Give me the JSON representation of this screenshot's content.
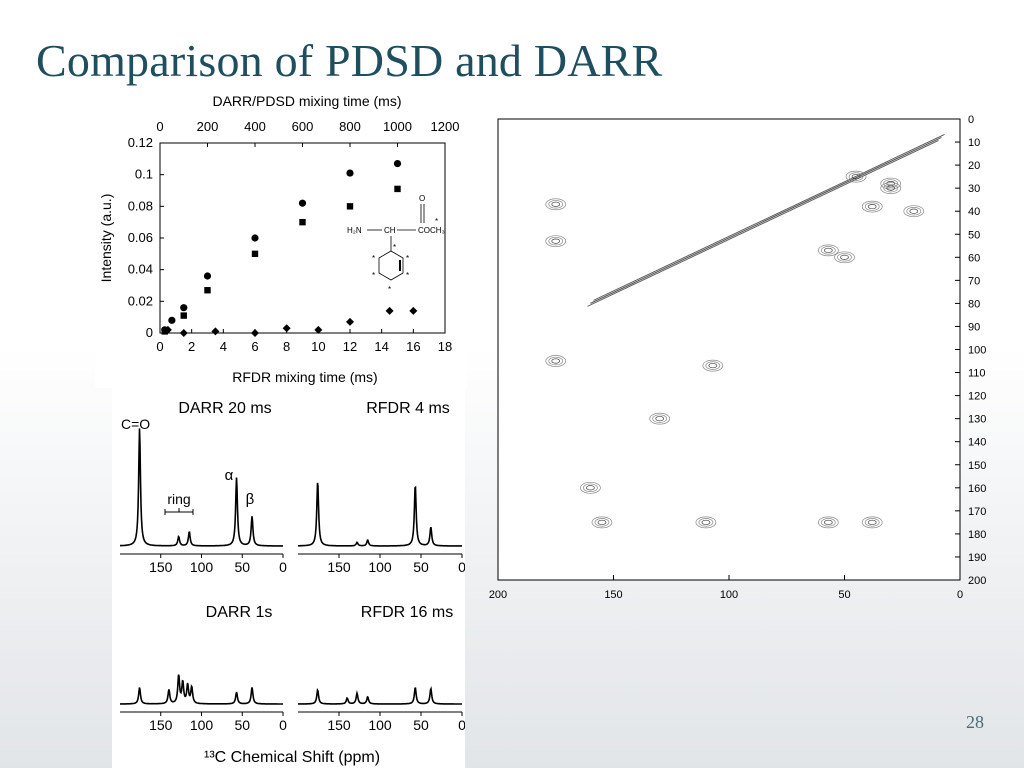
{
  "slide": {
    "title": "Comparison of PDSD and DARR",
    "page_number": "28"
  },
  "chart_data": [
    {
      "type": "scatter",
      "xlabel": "RFDR mixing time (ms)",
      "x2label": "DARR/PDSD mixing time (ms)",
      "ylabel": "Intensity (a.u.)",
      "xlim": [
        0,
        18
      ],
      "x2lim": [
        0,
        1200
      ],
      "ylim": [
        0,
        0.12
      ],
      "x_ticks": [
        0,
        2,
        4,
        6,
        8,
        10,
        12,
        14,
        16,
        18
      ],
      "x2_ticks": [
        0,
        200,
        400,
        600,
        800,
        1000,
        1200
      ],
      "y_ticks": [
        "0",
        "0.02",
        "0.04",
        "0.06",
        "0.08",
        "0.1",
        "0.12"
      ],
      "series": [
        {
          "marker": "circle",
          "axis": "top",
          "points": [
            [
              20,
              0.002
            ],
            [
              50,
              0.008
            ],
            [
              100,
              0.016
            ],
            [
              200,
              0.036
            ],
            [
              400,
              0.06
            ],
            [
              600,
              0.082
            ],
            [
              800,
              0.101
            ],
            [
              1000,
              0.107
            ]
          ]
        },
        {
          "marker": "square",
          "axis": "top",
          "points": [
            [
              20,
              0.001
            ],
            [
              100,
              0.011
            ],
            [
              200,
              0.027
            ],
            [
              400,
              0.05
            ],
            [
              600,
              0.07
            ],
            [
              800,
              0.08
            ],
            [
              1000,
              0.091
            ]
          ]
        },
        {
          "marker": "diamond",
          "axis": "bottom",
          "points": [
            [
              0.5,
              0.002
            ],
            [
              1.5,
              0.0
            ],
            [
              3.5,
              0.001
            ],
            [
              6.0,
              0.0
            ],
            [
              8.0,
              0.003
            ],
            [
              10.0,
              0.002
            ],
            [
              12.0,
              0.007
            ],
            [
              14.5,
              0.014
            ],
            [
              16.0,
              0.014
            ]
          ]
        }
      ],
      "molecule": {
        "amine": "H₂N",
        "ch": "CH",
        "carbonyl_o": "O",
        "ester": "COCH₃",
        "label_mark": "*"
      }
    },
    {
      "type": "line",
      "xlabel": "¹³C Chemical Shift (ppm)",
      "xlim": [
        0,
        200
      ],
      "x_ticks": [
        "150",
        "100",
        "50",
        "0"
      ],
      "panels": [
        {
          "title": "DARR 20 ms",
          "peaks": [
            [
              176,
              1.0
            ],
            [
              128,
              0.08
            ],
            [
              115,
              0.12
            ],
            [
              57,
              0.58
            ],
            [
              38,
              0.25
            ]
          ],
          "annotations": {
            "carbonyl": "C=O",
            "ring": "ring",
            "alpha": "α",
            "beta": "β"
          }
        },
        {
          "title": "RFDR 4 ms",
          "peaks": [
            [
              176,
              0.55
            ],
            [
              128,
              0.03
            ],
            [
              115,
              0.05
            ],
            [
              57,
              0.52
            ],
            [
              38,
              0.16
            ]
          ]
        },
        {
          "title": "DARR 1s",
          "peaks": [
            [
              176,
              0.14
            ],
            [
              140,
              0.12
            ],
            [
              128,
              0.24
            ],
            [
              123,
              0.18
            ],
            [
              117,
              0.16
            ],
            [
              112,
              0.14
            ],
            [
              57,
              0.1
            ],
            [
              38,
              0.14
            ]
          ]
        },
        {
          "title": "RFDR 16 ms",
          "peaks": [
            [
              176,
              0.12
            ],
            [
              140,
              0.05
            ],
            [
              128,
              0.09
            ],
            [
              115,
              0.06
            ],
            [
              57,
              0.14
            ],
            [
              38,
              0.13
            ]
          ]
        }
      ]
    },
    {
      "type": "heatmap",
      "subtype": "contour",
      "xlim": [
        200,
        0
      ],
      "ylim": [
        0,
        200
      ],
      "x_ticks": [
        "200",
        "150",
        "100",
        "50",
        "0"
      ],
      "y_ticks": [
        "0",
        "10",
        "20",
        "30",
        "40",
        "50",
        "60",
        "70",
        "80",
        "90",
        "100",
        "110",
        "120",
        "130",
        "140",
        "150",
        "160",
        "170",
        "180",
        "190",
        "200"
      ],
      "cross_peaks": [
        [
          175,
          37
        ],
        [
          175,
          53
        ],
        [
          57,
          175
        ],
        [
          38,
          175
        ],
        [
          130,
          130
        ],
        [
          160,
          160
        ],
        [
          110,
          175
        ],
        [
          155,
          175
        ],
        [
          175,
          105
        ],
        [
          107,
          107
        ],
        [
          50,
          60
        ],
        [
          30,
          28
        ],
        [
          45,
          25
        ],
        [
          20,
          40
        ],
        [
          57,
          57
        ],
        [
          38,
          38
        ],
        [
          30,
          30
        ]
      ]
    }
  ]
}
